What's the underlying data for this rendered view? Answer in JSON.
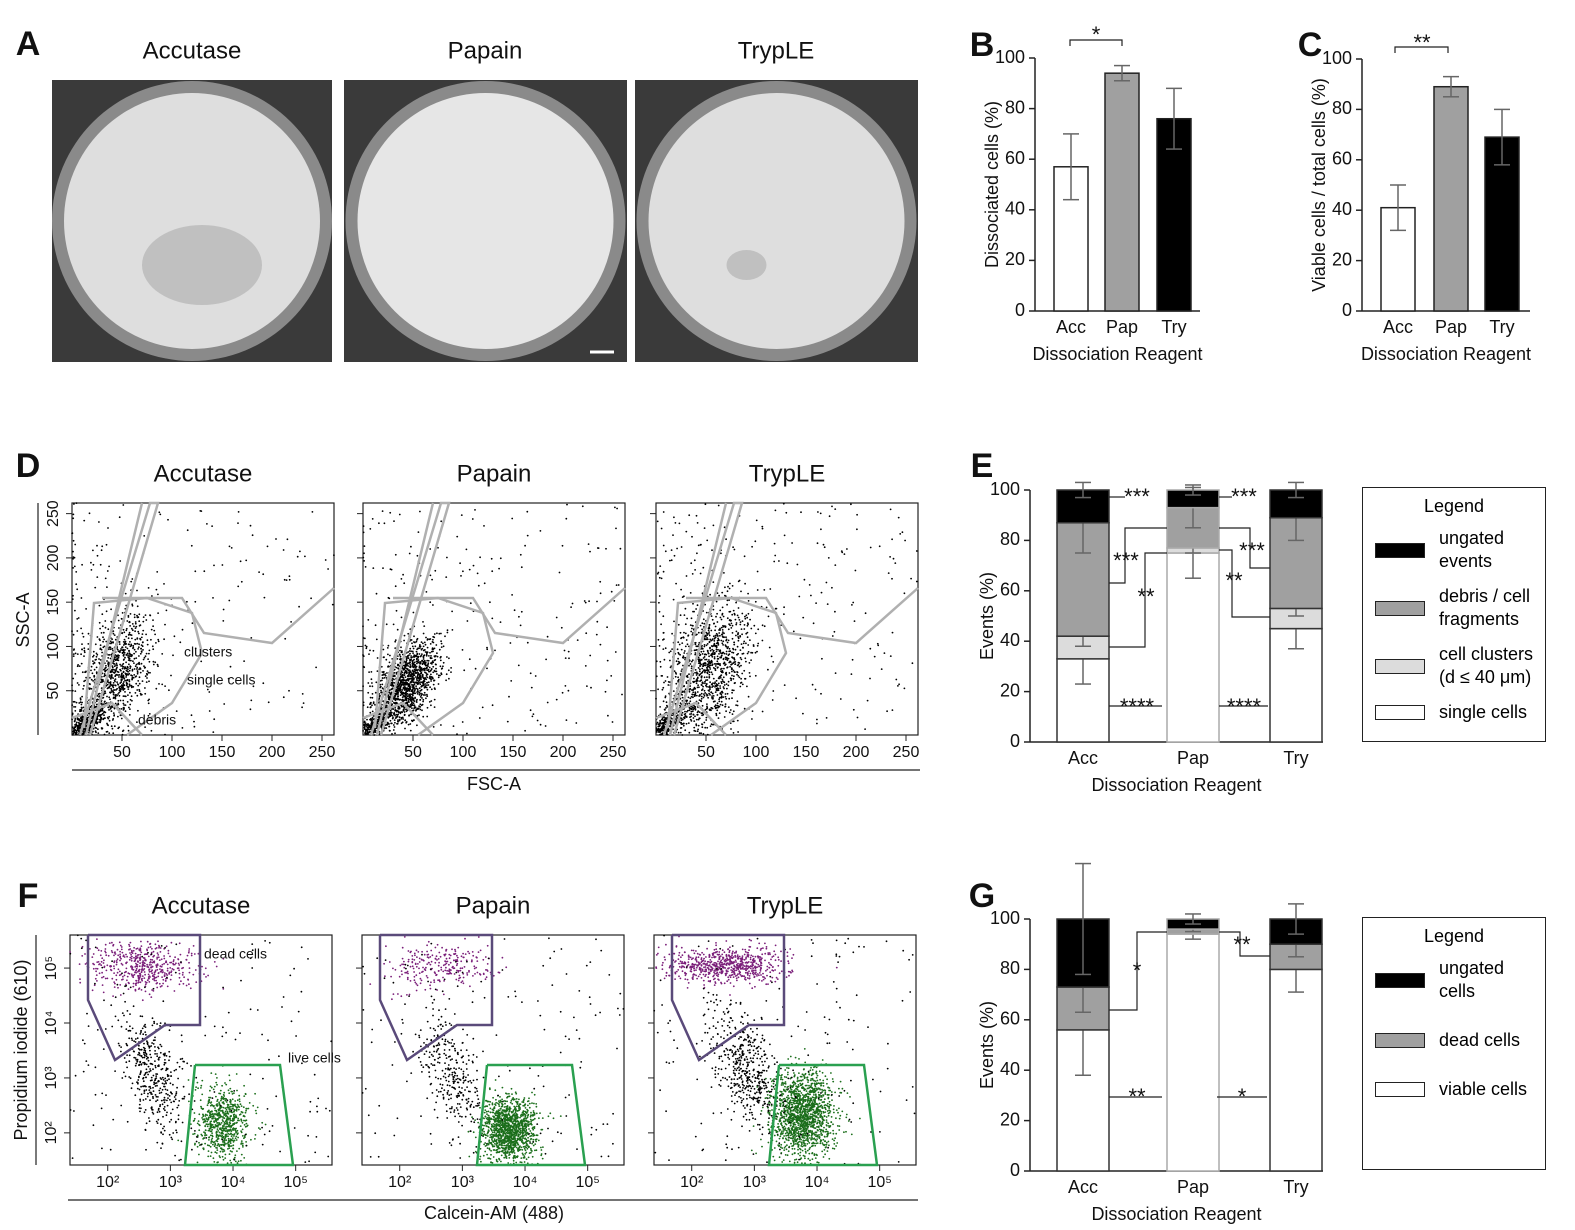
{
  "figure": {
    "panel_labels": [
      "A",
      "B",
      "C",
      "D",
      "E",
      "F",
      "G"
    ],
    "images": {
      "titles": [
        "Accutase",
        "Papain",
        "TrypLE"
      ]
    },
    "flow_scatter": {
      "titles": [
        "Accutase",
        "Papain",
        "TrypLE"
      ],
      "x_label": "FSC-A",
      "y_label": "SSC-A",
      "xlim": [
        0,
        262
      ],
      "ylim": [
        0,
        262
      ],
      "xticks": [
        50,
        100,
        150,
        200,
        250
      ],
      "yticks": [
        50,
        100,
        150,
        200,
        250
      ],
      "gate_labels": [
        "clusters",
        "single cells",
        "debris"
      ]
    },
    "flow_fluor": {
      "titles": [
        "Accutase",
        "Papain",
        "TrypLE"
      ],
      "x_label": "Calcein-AM (488)",
      "y_label": "Propidium iodide (610)",
      "log": true,
      "xlim": [
        25,
        380000
      ],
      "ylim": [
        26,
        400000
      ],
      "xticks": [
        {
          "value": 100,
          "label": "10²"
        },
        {
          "value": 1000,
          "label": "10³"
        },
        {
          "value": 10000,
          "label": "10⁴"
        },
        {
          "value": 100000,
          "label": "10⁵"
        }
      ],
      "yticks": [
        {
          "value": 100,
          "label": "10²"
        },
        {
          "value": 1000,
          "label": "10³"
        },
        {
          "value": 10000,
          "label": "10⁴"
        },
        {
          "value": 100000,
          "label": "10⁵"
        }
      ],
      "gate_labels": [
        "dead cells",
        "live cells"
      ]
    }
  },
  "chart_data": [
    {
      "type": "bar",
      "categories": [
        "Acc",
        "Pap",
        "Try"
      ],
      "values": [
        57,
        94,
        76
      ],
      "errors": [
        13,
        3,
        12
      ],
      "colors": [
        "#ffffff",
        "#a0a0a0",
        "#000000"
      ],
      "ylim": [
        0,
        100
      ],
      "yticks": [
        0,
        20,
        40,
        60,
        80,
        100
      ],
      "y_label": "Dissociated cells (%)",
      "x_label": "Dissociation Reagent",
      "annotations": [
        "*"
      ]
    },
    {
      "type": "bar",
      "categories": [
        "Acc",
        "Pap",
        "Try"
      ],
      "values": [
        41,
        89,
        69
      ],
      "errors": [
        9,
        4,
        11
      ],
      "colors": [
        "#ffffff",
        "#a0a0a0",
        "#000000"
      ],
      "ylim": [
        0,
        100
      ],
      "yticks": [
        0,
        20,
        40,
        60,
        80,
        100
      ],
      "y_label": "Viable cells / total cells (%)",
      "x_label": "Dissociation Reagent",
      "annotations": [
        "**"
      ]
    },
    {
      "type": "stacked_bar",
      "categories": [
        "Acc",
        "Pap",
        "Try"
      ],
      "ylim": [
        0,
        100
      ],
      "yticks": [
        0,
        20,
        40,
        60,
        80,
        100
      ],
      "y_label": "Events (%)",
      "x_label": "Dissociation Reagent",
      "legend_title": "Legend",
      "series": [
        {
          "name": "single cells",
          "color": "#ffffff",
          "values": [
            33,
            75,
            45
          ],
          "errors": [
            10,
            10,
            8
          ]
        },
        {
          "name": "cell clusters (d ≤ 40 μm)",
          "color": "#dcdcdc",
          "values": [
            9,
            2,
            8
          ],
          "errors": [
            4,
            2,
            3
          ]
        },
        {
          "name": "debris / cell fragments",
          "color": "#a0a0a0",
          "values": [
            45,
            16,
            36
          ],
          "errors": [
            12,
            8,
            9
          ]
        },
        {
          "name": "ungated events",
          "color": "#000000",
          "values": [
            13,
            7,
            11
          ],
          "errors": [
            3,
            2,
            3
          ]
        }
      ],
      "annotations": [
        "***",
        "***",
        "***",
        "***",
        "**",
        "**",
        "****",
        "****"
      ]
    },
    {
      "type": "stacked_bar",
      "categories": [
        "Acc",
        "Pap",
        "Try"
      ],
      "ylim": [
        0,
        100
      ],
      "yticks": [
        0,
        20,
        40,
        60,
        80,
        100
      ],
      "y_label": "Events (%)",
      "x_label": "Dissociation Reagent",
      "legend_title": "Legend",
      "series": [
        {
          "name": "viable cells",
          "color": "#ffffff",
          "values": [
            56,
            94,
            80
          ],
          "errors": [
            18,
            2,
            9
          ]
        },
        {
          "name": "dead cells",
          "color": "#a0a0a0",
          "values": [
            17,
            2,
            10
          ],
          "errors": [
            10,
            1,
            5
          ]
        },
        {
          "name": "ungated cells",
          "color": "#000000",
          "values": [
            27,
            4,
            10
          ],
          "errors": [
            22,
            2,
            6
          ]
        }
      ],
      "annotations": [
        "*",
        "**",
        "**",
        "*"
      ]
    }
  ]
}
